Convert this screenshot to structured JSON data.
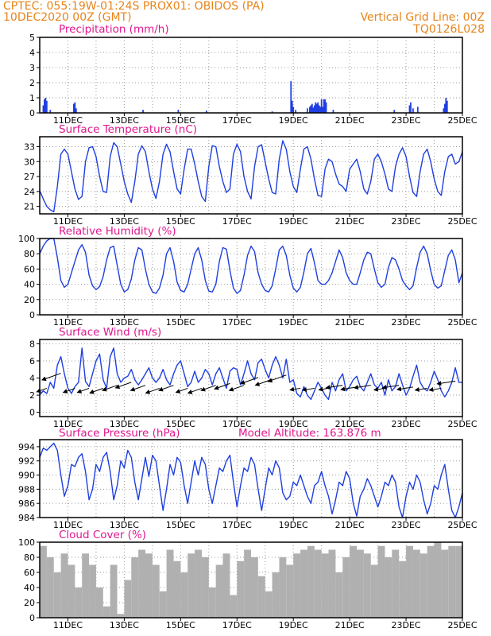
{
  "header": {
    "line1": "CPTEC:   055:19W-01:24S   PROX01: OBIDOS (PA)",
    "line2_left": "10DEC2020 00Z (GMT)",
    "line2_right": "Vertical Grid Line: 00Z",
    "line3_right": "TQ0126L028"
  },
  "colors": {
    "header": "#e8841a",
    "panel_title": "#e0178f",
    "series_line": "#1f3fe0",
    "bar": "#1f3fe0",
    "cloud_fill": "#b0b0b0",
    "grid": "#9a9a9a",
    "arrow": "#000000"
  },
  "chart_data": [
    {
      "type": "bar",
      "title": "Precipitation (mm/h)",
      "xlim": [
        0,
        360
      ],
      "ylim": [
        0,
        5
      ],
      "yticks": [
        0,
        1,
        2,
        3,
        4,
        5
      ],
      "xtick_labels": [
        "11DEC",
        "13DEC",
        "15DEC",
        "17DEC",
        "19DEC",
        "21DEC",
        "23DEC",
        "25DEC"
      ],
      "x": [
        3,
        4,
        5,
        6,
        9,
        29,
        30,
        31,
        88,
        118,
        142,
        198,
        214,
        215,
        216,
        218,
        228,
        230,
        231,
        232,
        233,
        234,
        235,
        236,
        237,
        238,
        239,
        240,
        241,
        242,
        243,
        244,
        250,
        302,
        315,
        316,
        318,
        322,
        344,
        345,
        346,
        347
      ],
      "values": [
        0.5,
        0.9,
        1.0,
        0.8,
        0.2,
        0.6,
        0.7,
        0.3,
        0.2,
        0.2,
        0.15,
        0.1,
        2.1,
        0.8,
        0.4,
        0.2,
        0.3,
        0.4,
        0.5,
        0.6,
        0.35,
        0.5,
        0.7,
        0.6,
        0.7,
        0.5,
        0.4,
        0.9,
        0.4,
        0.9,
        0.9,
        0.7,
        0.2,
        0.2,
        0.5,
        0.7,
        0.3,
        0.4,
        0.3,
        0.6,
        1.0,
        0.8
      ]
    },
    {
      "type": "line",
      "title": "Surface Temperature (nC)",
      "xlim": [
        0,
        360
      ],
      "ylim": [
        19.5,
        35
      ],
      "yticks": [
        21,
        24,
        27,
        30,
        33
      ],
      "xtick_labels": [
        "11DEC",
        "13DEC",
        "15DEC",
        "17DEC",
        "19DEC",
        "21DEC",
        "23DEC",
        "25DEC"
      ],
      "x": [
        0,
        3,
        6,
        9,
        12,
        15,
        18,
        21,
        24,
        27,
        30,
        33,
        36,
        39,
        42,
        45,
        48,
        51,
        54,
        57,
        60,
        63,
        66,
        69,
        72,
        75,
        78,
        81,
        84,
        87,
        90,
        93,
        96,
        99,
        102,
        105,
        108,
        111,
        114,
        117,
        120,
        123,
        126,
        129,
        132,
        135,
        138,
        141,
        144,
        147,
        150,
        153,
        156,
        159,
        162,
        165,
        168,
        171,
        174,
        177,
        180,
        183,
        186,
        189,
        192,
        195,
        198,
        201,
        204,
        207,
        210,
        213,
        216,
        219,
        222,
        225,
        228,
        231,
        234,
        237,
        240,
        243,
        246,
        249,
        252,
        255,
        258,
        261,
        264,
        267,
        270,
        273,
        276,
        279,
        282,
        285,
        288,
        291,
        294,
        297,
        300,
        303,
        306,
        309,
        312,
        315,
        318,
        321,
        324,
        327,
        330,
        333,
        336,
        339,
        342,
        345,
        348,
        351,
        354,
        357,
        360
      ],
      "values": [
        24.2,
        22.5,
        21.0,
        20.3,
        19.9,
        25.0,
        31.5,
        32.5,
        31.5,
        28.0,
        24.5,
        22.4,
        23.0,
        30.0,
        32.8,
        33.0,
        31.0,
        27.0,
        24.0,
        23.8,
        31.0,
        33.8,
        33.0,
        29.5,
        26.0,
        23.5,
        21.8,
        26.0,
        31.5,
        33.2,
        32.0,
        28.0,
        24.5,
        22.6,
        26.0,
        31.5,
        33.5,
        32.0,
        28.0,
        24.5,
        23.5,
        28.5,
        32.5,
        32.5,
        29.5,
        26.0,
        23.0,
        22.0,
        29.0,
        33.2,
        33.0,
        29.0,
        26.0,
        23.8,
        24.5,
        31.5,
        33.5,
        32.0,
        27.0,
        24.0,
        22.5,
        29.0,
        33.0,
        33.4,
        30.0,
        26.5,
        23.8,
        23.5,
        30.5,
        34.2,
        32.5,
        28.0,
        25.0,
        23.8,
        28.5,
        32.5,
        33.0,
        30.5,
        26.5,
        23.2,
        23.0,
        28.5,
        30.5,
        30.0,
        27.5,
        25.5,
        25.0,
        24.0,
        28.5,
        29.5,
        30.5,
        28.0,
        24.5,
        23.5,
        26.0,
        30.5,
        31.5,
        30.0,
        27.5,
        24.5,
        24.0,
        29.0,
        31.5,
        32.8,
        31.0,
        27.0,
        23.8,
        23.0,
        28.0,
        31.5,
        32.5,
        30.0,
        26.5,
        24.0,
        23.2,
        28.0,
        31.0,
        31.5,
        29.5,
        30.0,
        32.0
      ]
    },
    {
      "type": "line",
      "title": "Relative Humidity (%)",
      "xlim": [
        0,
        360
      ],
      "ylim": [
        0,
        100
      ],
      "yticks": [
        0,
        20,
        40,
        60,
        80,
        100
      ],
      "xtick_labels": [
        "11DEC",
        "13DEC",
        "15DEC",
        "17DEC",
        "19DEC",
        "21DEC",
        "23DEC",
        "25DEC"
      ],
      "x": [
        0,
        3,
        6,
        9,
        12,
        15,
        18,
        21,
        24,
        27,
        30,
        33,
        36,
        39,
        42,
        45,
        48,
        51,
        54,
        57,
        60,
        63,
        66,
        69,
        72,
        75,
        78,
        81,
        84,
        87,
        90,
        93,
        96,
        99,
        102,
        105,
        108,
        111,
        114,
        117,
        120,
        123,
        126,
        129,
        132,
        135,
        138,
        141,
        144,
        147,
        150,
        153,
        156,
        159,
        162,
        165,
        168,
        171,
        174,
        177,
        180,
        183,
        186,
        189,
        192,
        195,
        198,
        201,
        204,
        207,
        210,
        213,
        216,
        219,
        222,
        225,
        228,
        231,
        234,
        237,
        240,
        243,
        246,
        249,
        252,
        255,
        258,
        261,
        264,
        267,
        270,
        273,
        276,
        279,
        282,
        285,
        288,
        291,
        294,
        297,
        300,
        303,
        306,
        309,
        312,
        315,
        318,
        321,
        324,
        327,
        330,
        333,
        336,
        339,
        342,
        345,
        348,
        351,
        354,
        357,
        360
      ],
      "values": [
        80,
        90,
        97,
        100,
        100,
        75,
        45,
        36,
        40,
        55,
        70,
        85,
        92,
        82,
        52,
        38,
        33,
        37,
        50,
        72,
        88,
        90,
        65,
        40,
        30,
        33,
        47,
        72,
        88,
        85,
        60,
        40,
        30,
        28,
        35,
        52,
        80,
        88,
        70,
        43,
        32,
        30,
        40,
        60,
        80,
        88,
        72,
        45,
        31,
        30,
        40,
        70,
        88,
        86,
        58,
        35,
        28,
        32,
        52,
        78,
        90,
        83,
        55,
        40,
        32,
        30,
        38,
        60,
        85,
        90,
        78,
        52,
        35,
        30,
        36,
        56,
        80,
        87,
        68,
        45,
        40,
        40,
        45,
        55,
        70,
        85,
        75,
        55,
        45,
        40,
        40,
        55,
        72,
        82,
        80,
        60,
        42,
        36,
        40,
        62,
        75,
        72,
        60,
        45,
        38,
        33,
        38,
        62,
        82,
        90,
        80,
        58,
        40,
        35,
        38,
        58,
        78,
        85,
        72,
        42,
        55
      ]
    },
    {
      "type": "line",
      "title": "Surface Wind (m/s)",
      "xlim": [
        0,
        360
      ],
      "ylim": [
        -0.5,
        8.5
      ],
      "yticks": [
        0,
        2,
        4,
        6,
        8
      ],
      "xtick_labels": [
        "11DEC",
        "13DEC",
        "15DEC",
        "17DEC",
        "19DEC",
        "21DEC",
        "23DEC",
        "25DEC"
      ],
      "x": [
        0,
        3,
        6,
        9,
        12,
        15,
        18,
        21,
        24,
        27,
        30,
        33,
        36,
        39,
        42,
        45,
        48,
        51,
        54,
        57,
        60,
        63,
        66,
        69,
        72,
        75,
        78,
        81,
        84,
        87,
        90,
        93,
        96,
        99,
        102,
        105,
        108,
        111,
        114,
        117,
        120,
        123,
        126,
        129,
        132,
        135,
        138,
        141,
        144,
        147,
        150,
        153,
        156,
        159,
        162,
        165,
        168,
        171,
        174,
        177,
        180,
        183,
        186,
        189,
        192,
        195,
        198,
        201,
        204,
        207,
        210,
        213,
        216,
        219,
        222,
        225,
        228,
        231,
        234,
        237,
        240,
        243,
        246,
        249,
        252,
        255,
        258,
        261,
        264,
        267,
        270,
        273,
        276,
        279,
        282,
        285,
        288,
        291,
        294,
        297,
        300,
        303,
        306,
        309,
        312,
        315,
        318,
        321,
        324,
        327,
        330,
        333,
        336,
        339,
        342,
        345,
        348,
        351,
        354,
        357,
        360
      ],
      "values": [
        2.0,
        2.5,
        2.2,
        3.5,
        2.8,
        5.5,
        6.5,
        4.5,
        2.8,
        2.2,
        3.0,
        3.5,
        7.5,
        3.6,
        3.0,
        4.5,
        6.0,
        6.8,
        3.8,
        2.8,
        6.5,
        7.5,
        4.5,
        3.5,
        4.0,
        4.2,
        5.0,
        3.8,
        3.2,
        3.8,
        4.5,
        5.2,
        4.0,
        3.5,
        4.0,
        5.0,
        3.8,
        3.2,
        4.5,
        5.5,
        6.0,
        4.5,
        3.0,
        3.5,
        4.8,
        3.5,
        4.0,
        5.0,
        4.5,
        3.2,
        4.5,
        5.2,
        4.0,
        2.8,
        4.8,
        5.2,
        5.0,
        3.2,
        4.5,
        6.0,
        4.5,
        3.8,
        5.8,
        6.2,
        5.0,
        4.0,
        5.5,
        6.5,
        5.5,
        4.0,
        6.2,
        3.5,
        3.8,
        2.2,
        1.8,
        3.0,
        2.0,
        1.5,
        2.5,
        3.5,
        2.8,
        2.0,
        1.5,
        3.5,
        2.5,
        3.8,
        4.5,
        2.5,
        3.0,
        3.8,
        4.2,
        3.0,
        2.5,
        3.5,
        4.5,
        3.2,
        2.8,
        3.5,
        2.0,
        3.8,
        2.5,
        3.0,
        4.5,
        3.2,
        2.0,
        2.8,
        4.2,
        5.5,
        3.5,
        2.8,
        2.5,
        3.5,
        4.8,
        3.8,
        2.5,
        1.8,
        2.5,
        3.5,
        5.2,
        3.5,
        3.5
      ]
    },
    {
      "type": "line",
      "title": "Surface Pressure (hPa)",
      "subtitle": "Model Altitude: 163.876 m",
      "xlim": [
        0,
        360
      ],
      "ylim": [
        984,
        995
      ],
      "yticks": [
        984,
        986,
        988,
        990,
        992,
        994
      ],
      "xtick_labels": [
        "11DEC",
        "13DEC",
        "15DEC",
        "17DEC",
        "19DEC",
        "21DEC",
        "23DEC",
        "25DEC"
      ],
      "x": [
        0,
        3,
        6,
        9,
        12,
        15,
        18,
        21,
        24,
        27,
        30,
        33,
        36,
        39,
        42,
        45,
        48,
        51,
        54,
        57,
        60,
        63,
        66,
        69,
        72,
        75,
        78,
        81,
        84,
        87,
        90,
        93,
        96,
        99,
        102,
        105,
        108,
        111,
        114,
        117,
        120,
        123,
        126,
        129,
        132,
        135,
        138,
        141,
        144,
        147,
        150,
        153,
        156,
        159,
        162,
        165,
        168,
        171,
        174,
        177,
        180,
        183,
        186,
        189,
        192,
        195,
        198,
        201,
        204,
        207,
        210,
        213,
        216,
        219,
        222,
        225,
        228,
        231,
        234,
        237,
        240,
        243,
        246,
        249,
        252,
        255,
        258,
        261,
        264,
        267,
        270,
        273,
        276,
        279,
        282,
        285,
        288,
        291,
        294,
        297,
        300,
        303,
        306,
        309,
        312,
        315,
        318,
        321,
        324,
        327,
        330,
        333,
        336,
        339,
        342,
        345,
        348,
        351,
        354,
        357,
        360
      ],
      "values": [
        992.5,
        993.8,
        993.5,
        994.0,
        994.5,
        993.5,
        990.0,
        987.0,
        988.5,
        991.5,
        991.2,
        992.5,
        993.0,
        990.5,
        986.5,
        988.0,
        991.5,
        990.5,
        992.5,
        993.2,
        990.5,
        986.5,
        988.5,
        992.0,
        991.0,
        993.5,
        992.5,
        989.0,
        986.5,
        989.5,
        992.5,
        989.8,
        992.8,
        992.0,
        988.5,
        985.0,
        988.0,
        991.5,
        990.0,
        992.5,
        991.8,
        988.5,
        986.0,
        989.0,
        992.0,
        990.0,
        992.5,
        991.5,
        988.0,
        986.0,
        988.5,
        991.0,
        990.5,
        992.0,
        992.8,
        989.0,
        985.5,
        988.5,
        991.0,
        990.5,
        992.5,
        991.5,
        988.0,
        985.0,
        988.0,
        991.0,
        990.0,
        992.0,
        991.0,
        987.5,
        986.5,
        987.0,
        989.0,
        988.5,
        990.0,
        988.5,
        987.0,
        986.0,
        988.5,
        989.0,
        990.5,
        988.5,
        987.0,
        984.5,
        986.5,
        989.0,
        988.5,
        990.5,
        989.5,
        986.0,
        984.2,
        987.0,
        988.0,
        989.5,
        988.5,
        987.0,
        985.5,
        987.0,
        989.0,
        988.5,
        990.0,
        989.0,
        985.5,
        984.0,
        987.0,
        989.0,
        988.0,
        990.0,
        989.0,
        986.5,
        984.5,
        986.0,
        988.5,
        988.0,
        990.0,
        991.5,
        988.0,
        985.0,
        984.0,
        985.5,
        987.5
      ]
    },
    {
      "type": "area",
      "title": "Cloud Cover (%)",
      "xlim": [
        0,
        360
      ],
      "ylim": [
        0,
        100
      ],
      "yticks": [
        0,
        20,
        40,
        60,
        80,
        100
      ],
      "xtick_labels": [
        "11DEC",
        "13DEC",
        "15DEC",
        "17DEC",
        "19DEC",
        "21DEC",
        "23DEC",
        "25DEC"
      ],
      "x": [
        0,
        6,
        12,
        18,
        24,
        30,
        36,
        42,
        48,
        54,
        60,
        66,
        72,
        78,
        84,
        90,
        96,
        102,
        108,
        114,
        120,
        126,
        132,
        138,
        144,
        150,
        156,
        162,
        168,
        174,
        180,
        186,
        192,
        198,
        204,
        210,
        216,
        222,
        228,
        234,
        240,
        246,
        252,
        258,
        264,
        270,
        276,
        282,
        288,
        294,
        300,
        306,
        312,
        318,
        324,
        330,
        336,
        342,
        348,
        354,
        360
      ],
      "values": [
        95,
        80,
        60,
        85,
        70,
        40,
        85,
        70,
        40,
        15,
        70,
        5,
        50,
        80,
        90,
        85,
        70,
        35,
        90,
        75,
        60,
        85,
        90,
        80,
        40,
        70,
        85,
        30,
        75,
        90,
        80,
        55,
        35,
        60,
        80,
        70,
        85,
        90,
        95,
        90,
        85,
        90,
        60,
        80,
        95,
        90,
        85,
        70,
        95,
        80,
        90,
        75,
        95,
        90,
        85,
        95,
        100,
        90,
        95,
        95,
        100
      ]
    }
  ]
}
